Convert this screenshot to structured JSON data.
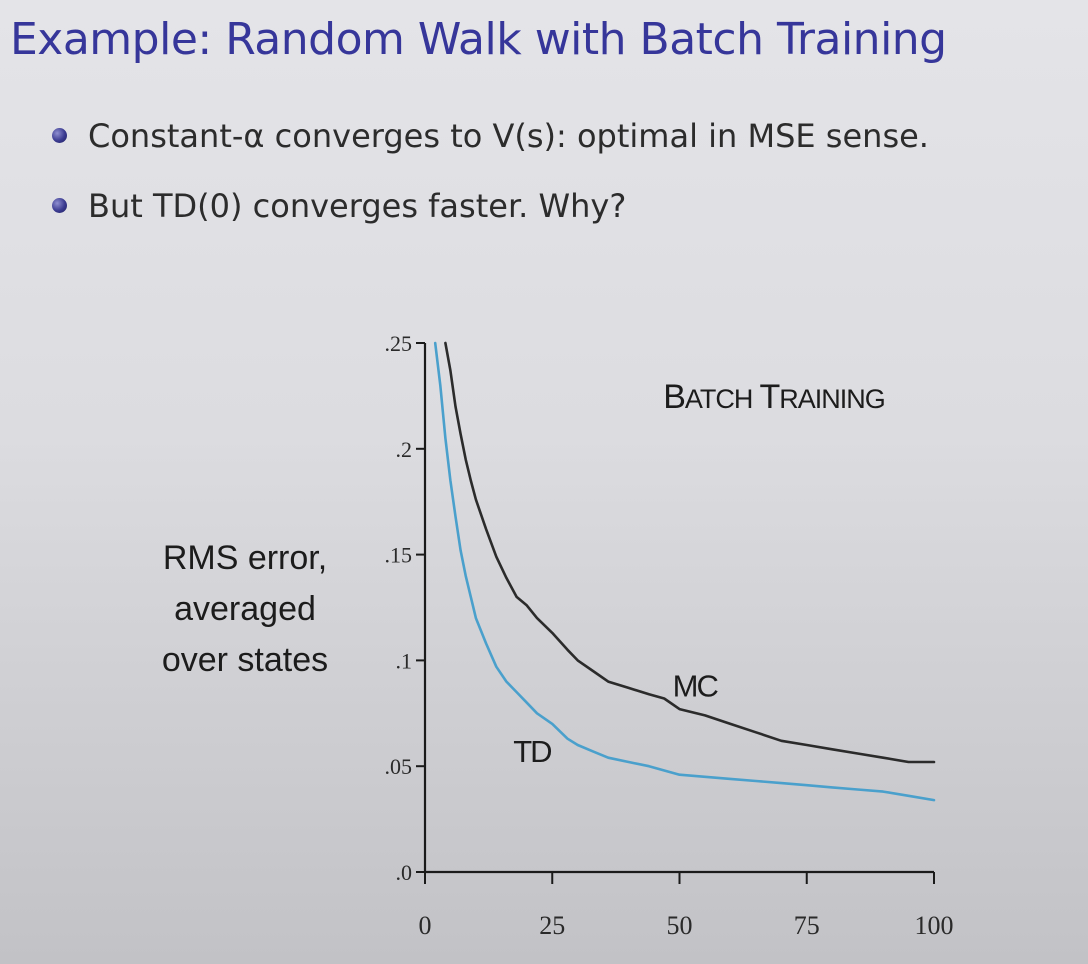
{
  "slide": {
    "title": "Example: Random Walk with Batch Training",
    "bullets": [
      "Constant-α converges to V(s): optimal in MSE sense.",
      "But TD(0) converges faster. Why?"
    ]
  },
  "chart_data": {
    "type": "line",
    "title": "BATCH TRAINING",
    "ylabel_lines": [
      "RMS error,",
      "averaged",
      "over states"
    ],
    "xlabel": "",
    "xlim": [
      0,
      100
    ],
    "ylim": [
      0,
      0.25
    ],
    "x_ticks": [
      0,
      25,
      50,
      75,
      100
    ],
    "x_tick_labels": [
      "0",
      "25",
      "50",
      "75",
      "100"
    ],
    "y_ticks": [
      0,
      0.05,
      0.1,
      0.15,
      0.2,
      0.25
    ],
    "y_tick_labels": [
      ".0",
      ".05",
      ".1",
      ".15",
      ".2",
      ".25"
    ],
    "grid": false,
    "series": [
      {
        "name": "MC",
        "color": "#2b2b2b",
        "x": [
          4,
          5,
          6,
          7,
          8,
          9,
          10,
          12,
          14,
          16,
          18,
          20,
          22,
          25,
          28,
          30,
          33,
          36,
          40,
          44,
          47,
          50,
          55,
          60,
          65,
          70,
          75,
          80,
          85,
          90,
          95,
          100
        ],
        "y": [
          0.25,
          0.237,
          0.22,
          0.207,
          0.195,
          0.185,
          0.176,
          0.162,
          0.149,
          0.139,
          0.13,
          0.126,
          0.12,
          0.113,
          0.105,
          0.1,
          0.095,
          0.09,
          0.087,
          0.084,
          0.082,
          0.077,
          0.074,
          0.07,
          0.066,
          0.062,
          0.06,
          0.058,
          0.056,
          0.054,
          0.052,
          0.052
        ]
      },
      {
        "name": "TD",
        "color": "#4aa0cc",
        "x": [
          2,
          3,
          4,
          5,
          6,
          7,
          8,
          9,
          10,
          12,
          14,
          16,
          18,
          20,
          22,
          25,
          28,
          30,
          33,
          36,
          40,
          44,
          50,
          55,
          60,
          65,
          70,
          75,
          80,
          85,
          90,
          95,
          100
        ],
        "y": [
          0.25,
          0.23,
          0.205,
          0.185,
          0.168,
          0.152,
          0.14,
          0.13,
          0.12,
          0.108,
          0.097,
          0.09,
          0.085,
          0.08,
          0.075,
          0.07,
          0.063,
          0.06,
          0.057,
          0.054,
          0.052,
          0.05,
          0.046,
          0.045,
          0.044,
          0.043,
          0.042,
          0.041,
          0.04,
          0.039,
          0.038,
          0.036,
          0.034
        ]
      }
    ],
    "annotations": [
      {
        "text": "MC",
        "x": 53,
        "y": 0.083
      },
      {
        "text": "TD",
        "x": 21,
        "y": 0.052
      }
    ]
  }
}
